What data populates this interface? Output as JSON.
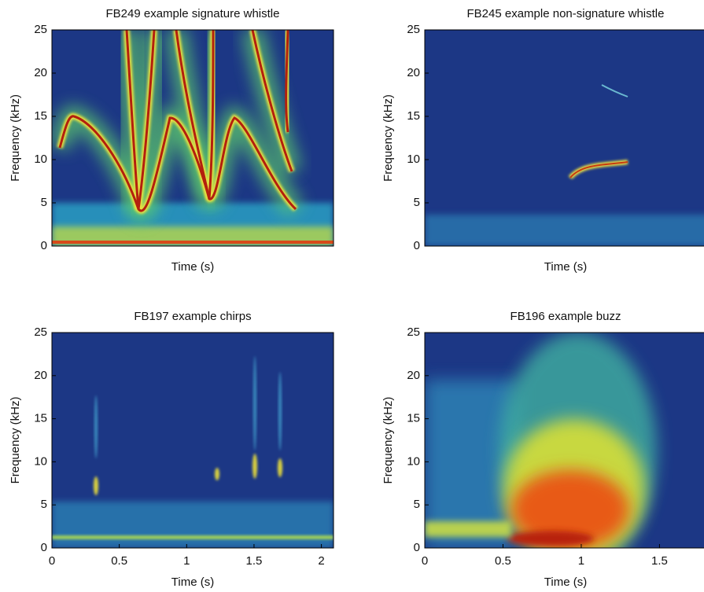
{
  "chart_data": [
    {
      "type": "spectrogram",
      "title": "FB249 example signature whistle",
      "xlabel": "Time (s)",
      "ylabel": "Frequency (kHz)",
      "ylim": [
        0,
        25
      ],
      "yticks": [
        0,
        5,
        10,
        15,
        20,
        25
      ]
    },
    {
      "type": "spectrogram",
      "title": "FB245 example non-signature whistle",
      "xlabel": "Time (s)",
      "ylabel": "Frequency (kHz)",
      "ylim": [
        0,
        25
      ],
      "yticks": [
        0,
        5,
        10,
        15,
        20,
        25
      ]
    },
    {
      "type": "spectrogram",
      "title": "FB197 example chirps",
      "xlabel": "Time (s)",
      "ylabel": "Frequency (kHz)",
      "xlim": [
        0,
        2.09
      ],
      "xticks": [
        0,
        0.5,
        1,
        1.5,
        2
      ],
      "ylim": [
        0,
        25
      ],
      "yticks": [
        0,
        5,
        10,
        15,
        20,
        25
      ]
    },
    {
      "type": "spectrogram",
      "title": "FB196 example buzz",
      "xlabel": "Time (s)",
      "ylabel": "Frequency (kHz)",
      "xlim": [
        0,
        1.91
      ],
      "xticks": [
        0,
        0.5,
        1,
        1.5
      ],
      "ylim": [
        0,
        25
      ],
      "yticks": [
        0,
        5,
        10,
        15,
        20,
        25
      ]
    }
  ]
}
